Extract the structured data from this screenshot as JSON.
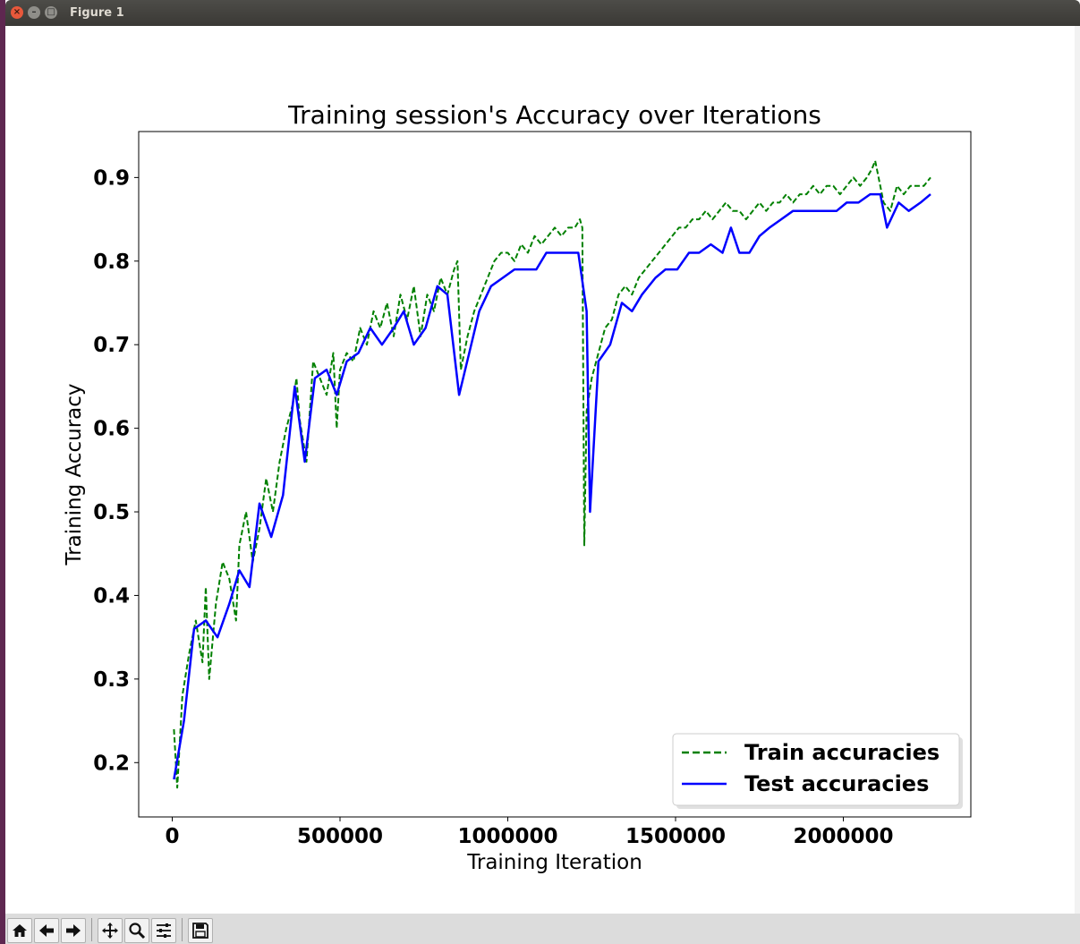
{
  "window": {
    "title": "Figure 1"
  },
  "toolbar": {
    "buttons": [
      "home-icon",
      "back-icon",
      "forward-icon",
      "pan-icon",
      "zoom-icon",
      "configure-icon",
      "save-icon"
    ]
  },
  "chart_data": {
    "type": "line",
    "title": "Training session's Accuracy over Iterations",
    "xlabel": "Training Iteration",
    "ylabel": "Training Accuracy",
    "xlim": [
      -100000,
      2380000
    ],
    "ylim": [
      0.135,
      0.955
    ],
    "x_ticks": [
      0,
      500000,
      1000000,
      1500000,
      2000000
    ],
    "x_tick_labels": [
      "0",
      "500000",
      "1000000",
      "1500000",
      "2000000"
    ],
    "y_ticks": [
      0.2,
      0.3,
      0.4,
      0.5,
      0.6,
      0.7,
      0.8,
      0.9
    ],
    "y_tick_labels": [
      "0.2",
      "0.3",
      "0.4",
      "0.5",
      "0.6",
      "0.7",
      "0.8",
      "0.9"
    ],
    "grid": false,
    "legend": "lower-right",
    "series": [
      {
        "name": "Train accuracies",
        "color": "#008000",
        "style": "dashed",
        "x": [
          5000,
          15000,
          30000,
          50000,
          70000,
          90000,
          100000,
          110000,
          130000,
          150000,
          170000,
          190000,
          200000,
          220000,
          240000,
          260000,
          280000,
          300000,
          320000,
          340000,
          360000,
          370000,
          380000,
          400000,
          420000,
          440000,
          460000,
          480000,
          490000,
          500000,
          520000,
          540000,
          560000,
          580000,
          600000,
          620000,
          640000,
          660000,
          680000,
          700000,
          720000,
          740000,
          760000,
          780000,
          800000,
          820000,
          840000,
          850000,
          860000,
          880000,
          900000,
          920000,
          940000,
          960000,
          980000,
          1000000,
          1020000,
          1040000,
          1060000,
          1080000,
          1100000,
          1120000,
          1140000,
          1160000,
          1180000,
          1200000,
          1215000,
          1222000,
          1228000,
          1235000,
          1250000,
          1270000,
          1290000,
          1310000,
          1330000,
          1350000,
          1370000,
          1390000,
          1410000,
          1430000,
          1450000,
          1470000,
          1490000,
          1510000,
          1530000,
          1550000,
          1570000,
          1590000,
          1610000,
          1630000,
          1650000,
          1670000,
          1690000,
          1710000,
          1730000,
          1750000,
          1770000,
          1790000,
          1810000,
          1830000,
          1850000,
          1870000,
          1890000,
          1910000,
          1930000,
          1950000,
          1970000,
          1990000,
          2010000,
          2030000,
          2050000,
          2070000,
          2085000,
          2095000,
          2105000,
          2120000,
          2140000,
          2160000,
          2180000,
          2200000,
          2220000,
          2240000,
          2260000
        ],
        "values": [
          0.24,
          0.17,
          0.28,
          0.33,
          0.37,
          0.32,
          0.41,
          0.3,
          0.39,
          0.44,
          0.42,
          0.37,
          0.46,
          0.5,
          0.44,
          0.48,
          0.54,
          0.5,
          0.56,
          0.6,
          0.63,
          0.66,
          0.61,
          0.56,
          0.68,
          0.66,
          0.64,
          0.69,
          0.6,
          0.67,
          0.69,
          0.68,
          0.72,
          0.7,
          0.74,
          0.72,
          0.75,
          0.71,
          0.76,
          0.73,
          0.77,
          0.71,
          0.76,
          0.74,
          0.78,
          0.76,
          0.79,
          0.8,
          0.67,
          0.71,
          0.74,
          0.76,
          0.78,
          0.8,
          0.81,
          0.81,
          0.8,
          0.82,
          0.81,
          0.83,
          0.82,
          0.83,
          0.84,
          0.83,
          0.84,
          0.84,
          0.85,
          0.84,
          0.46,
          0.62,
          0.66,
          0.69,
          0.72,
          0.73,
          0.76,
          0.77,
          0.76,
          0.78,
          0.79,
          0.8,
          0.81,
          0.82,
          0.83,
          0.84,
          0.84,
          0.85,
          0.85,
          0.86,
          0.85,
          0.86,
          0.87,
          0.86,
          0.86,
          0.85,
          0.86,
          0.87,
          0.86,
          0.87,
          0.87,
          0.88,
          0.87,
          0.88,
          0.88,
          0.89,
          0.88,
          0.89,
          0.89,
          0.88,
          0.89,
          0.9,
          0.89,
          0.9,
          0.91,
          0.92,
          0.9,
          0.87,
          0.86,
          0.89,
          0.88,
          0.89,
          0.89,
          0.89,
          0.9
        ]
      },
      {
        "name": "Test accuracies",
        "color": "#0000ff",
        "style": "solid",
        "x": [
          5000,
          35000,
          65000,
          100000,
          135000,
          170000,
          200000,
          230000,
          260000,
          295000,
          330000,
          365000,
          395000,
          425000,
          460000,
          490000,
          520000,
          555000,
          590000,
          625000,
          660000,
          690000,
          720000,
          755000,
          790000,
          820000,
          855000,
          885000,
          915000,
          950000,
          985000,
          1020000,
          1050000,
          1085000,
          1115000,
          1150000,
          1185000,
          1210000,
          1235000,
          1245000,
          1270000,
          1305000,
          1340000,
          1370000,
          1400000,
          1440000,
          1470000,
          1505000,
          1540000,
          1570000,
          1605000,
          1640000,
          1665000,
          1690000,
          1720000,
          1750000,
          1780000,
          1815000,
          1850000,
          1880000,
          1915000,
          1945000,
          1980000,
          2010000,
          2045000,
          2080000,
          2110000,
          2130000,
          2165000,
          2195000,
          2230000,
          2260000
        ],
        "values": [
          0.18,
          0.25,
          0.36,
          0.37,
          0.35,
          0.39,
          0.43,
          0.41,
          0.51,
          0.47,
          0.52,
          0.65,
          0.56,
          0.66,
          0.67,
          0.64,
          0.68,
          0.69,
          0.72,
          0.7,
          0.72,
          0.74,
          0.7,
          0.72,
          0.77,
          0.76,
          0.64,
          0.69,
          0.74,
          0.77,
          0.78,
          0.79,
          0.79,
          0.79,
          0.81,
          0.81,
          0.81,
          0.81,
          0.74,
          0.5,
          0.68,
          0.7,
          0.75,
          0.74,
          0.76,
          0.78,
          0.79,
          0.79,
          0.81,
          0.81,
          0.82,
          0.81,
          0.84,
          0.81,
          0.81,
          0.83,
          0.84,
          0.85,
          0.86,
          0.86,
          0.86,
          0.86,
          0.86,
          0.87,
          0.87,
          0.88,
          0.88,
          0.84,
          0.87,
          0.86,
          0.87,
          0.88
        ]
      }
    ]
  }
}
